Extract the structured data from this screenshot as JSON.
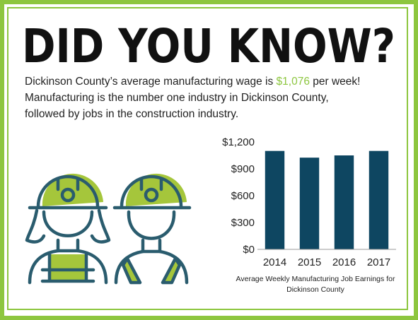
{
  "header": {
    "title": "DID YOU KNOW?"
  },
  "paragraph": {
    "before": "Dickinson County’s average manufacturing wage is ",
    "highlight": "$1,076",
    "after": " per week!",
    "line2": "Manufacturing is the number one industry in Dickinson County,",
    "line3": "followed by jobs in the construction industry."
  },
  "chart_data": {
    "type": "bar",
    "caption": "Average Weekly Manufacturing Job Earnings for Dickinson County",
    "categories": [
      "2014",
      "2015",
      "2016",
      "2017"
    ],
    "values": [
      1100,
      1025,
      1050,
      1100
    ],
    "color": "#0e4661",
    "ylim": [
      0,
      1200
    ],
    "yticks": [
      {
        "value": 0,
        "label": "$0"
      },
      {
        "value": 300,
        "label": "$300"
      },
      {
        "value": 600,
        "label": "$600"
      },
      {
        "value": 900,
        "label": "$900"
      },
      {
        "value": 1200,
        "label": "$1,200"
      }
    ],
    "grid": false
  }
}
